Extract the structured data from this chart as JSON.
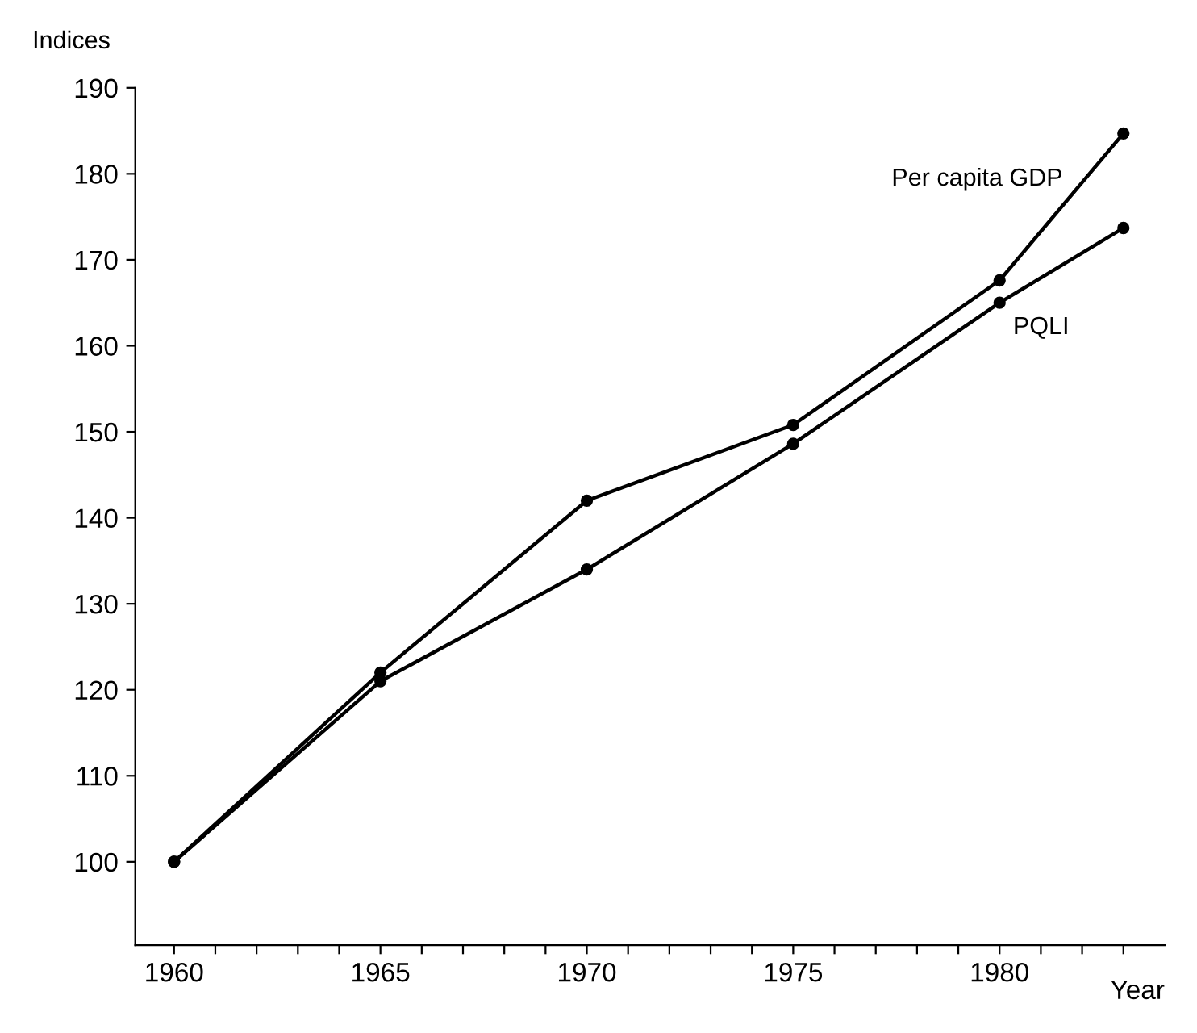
{
  "chart_data": {
    "type": "line",
    "xlabel": "Year",
    "ylabel": "Indices",
    "x": [
      1960,
      1965,
      1970,
      1975,
      1980,
      1983
    ],
    "series": [
      {
        "name": "Per capita GDP",
        "color": "#000000",
        "values": [
          100,
          122,
          142,
          150.8,
          167.6,
          184.7
        ]
      },
      {
        "name": "PQLI",
        "color": "#000000",
        "values": [
          100,
          121,
          134,
          148.6,
          165,
          173.7
        ]
      }
    ],
    "xlim": [
      1959.06,
      1984
    ],
    "ylim": [
      90.3,
      190
    ],
    "xticks": [
      1960,
      {
        "value": 1961,
        "label": null
      },
      {
        "value": 1962,
        "label": null
      },
      {
        "value": 1963,
        "label": null
      },
      {
        "value": 1964,
        "label": null
      },
      1965,
      {
        "value": 1966,
        "label": null
      },
      {
        "value": 1967,
        "label": null
      },
      {
        "value": 1968,
        "label": null
      },
      {
        "value": 1969,
        "label": null
      },
      1970,
      {
        "value": 1971,
        "label": null
      },
      {
        "value": 1972,
        "label": null
      },
      {
        "value": 1973,
        "label": null
      },
      {
        "value": 1974,
        "label": null
      },
      1975,
      {
        "value": 1976,
        "label": null
      },
      {
        "value": 1977,
        "label": null
      },
      {
        "value": 1978,
        "label": null
      },
      {
        "value": 1979,
        "label": null
      },
      1980,
      {
        "value": 1981,
        "label": null
      },
      {
        "value": 1982,
        "label": null
      },
      {
        "value": 1983,
        "label": null
      }
    ],
    "yticks": [
      100,
      110,
      120,
      130,
      140,
      150,
      160,
      170,
      180,
      190
    ],
    "grid": false,
    "legend": false,
    "marker": "circle",
    "line_style": "solid"
  }
}
